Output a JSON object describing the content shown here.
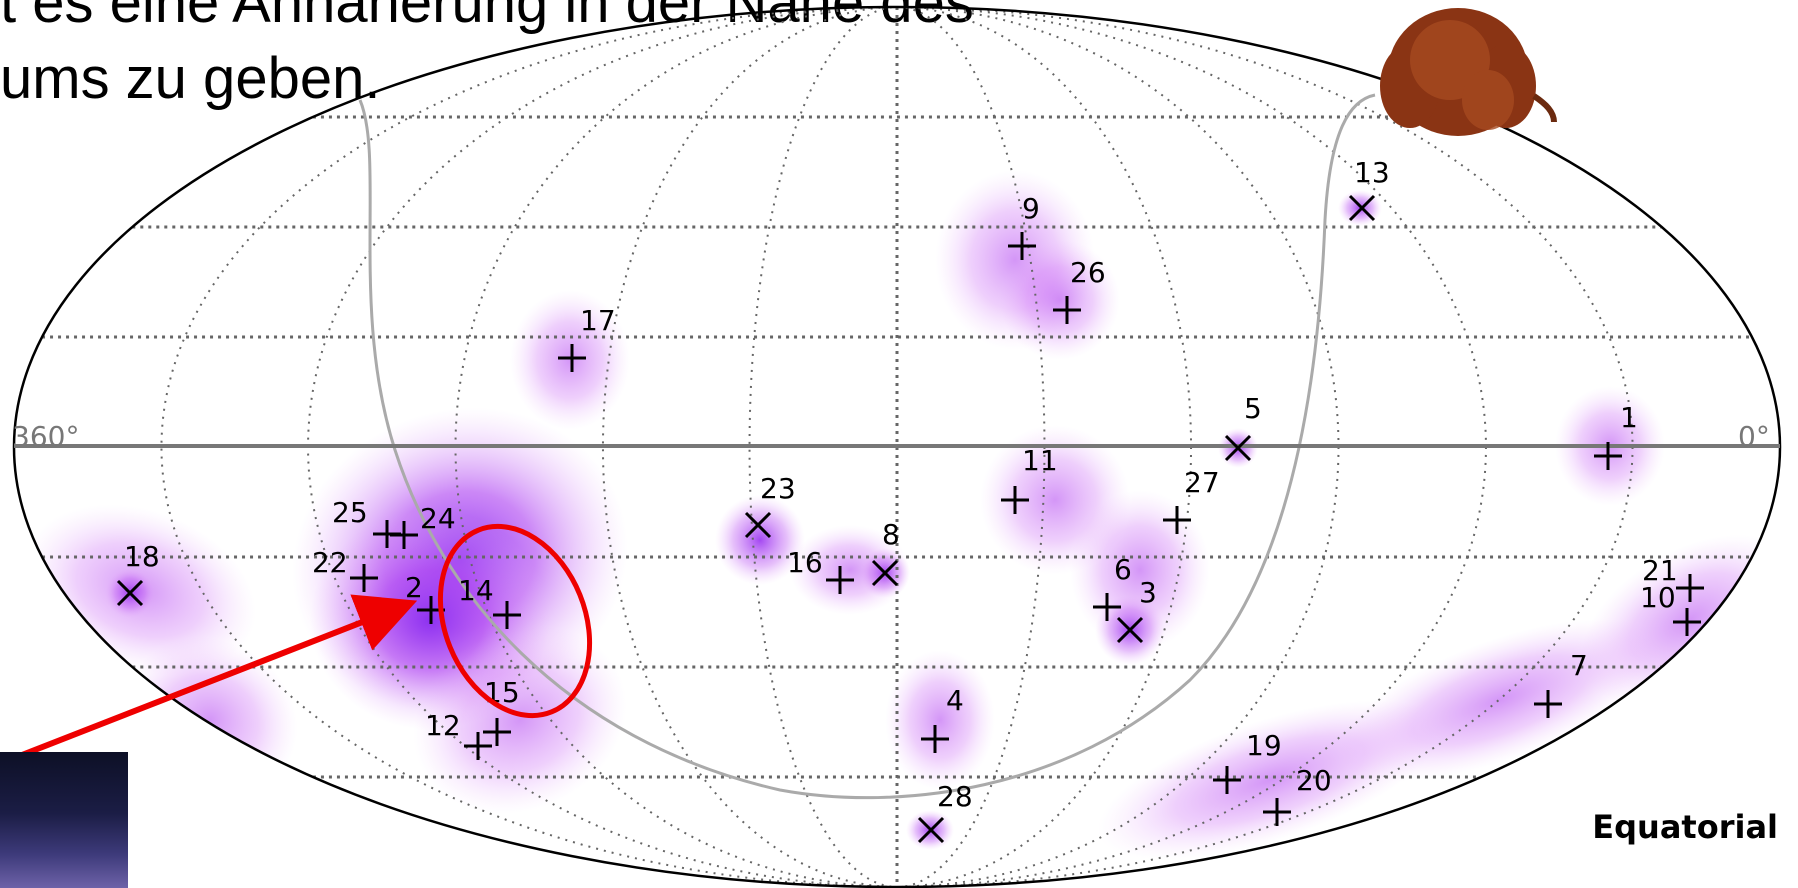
{
  "slide": {
    "caption_line1": "t es eine Annäherung in der Nähe des",
    "caption_line2": "ums zu geben."
  },
  "skymap": {
    "projection_label": "Equatorial",
    "ra_left_label": "360°",
    "ra_right_label": "0°",
    "colors": {
      "density": "#b040f0",
      "galactic_plane": "#aaaaaa",
      "highlight_ellipse": "#ee0000",
      "arrow": "#ee0000",
      "markers": "#000000"
    },
    "events": [
      {
        "id": "1",
        "marker": "plus"
      },
      {
        "id": "3",
        "marker": "cross"
      },
      {
        "id": "4",
        "marker": "plus"
      },
      {
        "id": "5",
        "marker": "cross"
      },
      {
        "id": "6",
        "marker": "plus"
      },
      {
        "id": "7",
        "marker": "plus"
      },
      {
        "id": "8",
        "marker": "cross"
      },
      {
        "id": "9",
        "marker": "plus"
      },
      {
        "id": "10",
        "marker": "plus"
      },
      {
        "id": "11",
        "marker": "plus"
      },
      {
        "id": "12",
        "marker": "plus"
      },
      {
        "id": "13",
        "marker": "cross"
      },
      {
        "id": "14",
        "marker": "plus"
      },
      {
        "id": "15",
        "marker": "plus"
      },
      {
        "id": "16",
        "marker": "plus"
      },
      {
        "id": "17",
        "marker": "plus"
      },
      {
        "id": "18",
        "marker": "cross"
      },
      {
        "id": "19",
        "marker": "plus"
      },
      {
        "id": "20",
        "marker": "plus"
      },
      {
        "id": "21",
        "marker": "plus"
      },
      {
        "id": "2",
        "marker": "plus"
      },
      {
        "id": "22",
        "marker": "plus"
      },
      {
        "id": "23",
        "marker": "cross"
      },
      {
        "id": "24",
        "marker": "plus"
      },
      {
        "id": "25",
        "marker": "plus"
      },
      {
        "id": "26",
        "marker": "plus"
      },
      {
        "id": "27",
        "marker": "plus"
      },
      {
        "id": "28",
        "marker": "cross"
      }
    ]
  }
}
